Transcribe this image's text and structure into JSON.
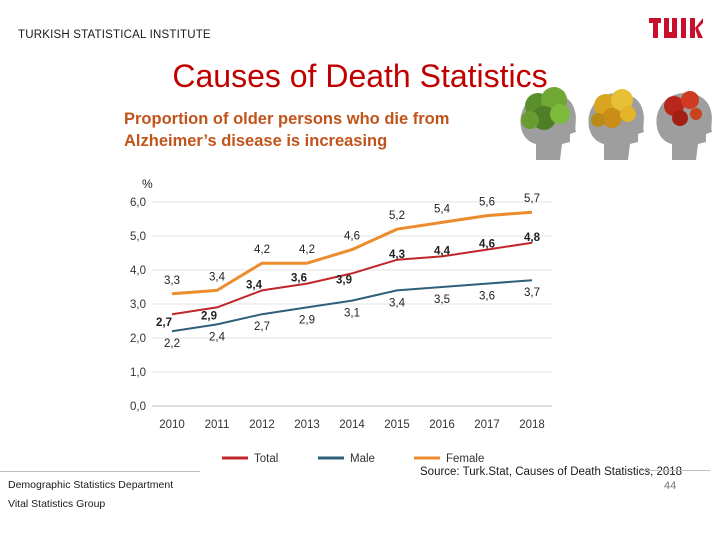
{
  "header": {
    "org": "TURKISH STATISTICAL INSTITUTE",
    "logo_text": "TÜİK",
    "title": "Causes of Death Statistics",
    "subtitle_line1": "Proportion of older persons who die from",
    "subtitle_line2": "Alzheimer’s disease is increasing"
  },
  "chart_data": {
    "type": "line",
    "ylabel": "%",
    "xlabel": "",
    "ylim": [
      0,
      6
    ],
    "yticks": [
      "0,0",
      "1,0",
      "2,0",
      "3,0",
      "4,0",
      "5,0",
      "6,0"
    ],
    "categories": [
      "2010",
      "2011",
      "2012",
      "2013",
      "2014",
      "2015",
      "2016",
      "2017",
      "2018"
    ],
    "legend_position": "bottom",
    "series": [
      {
        "name": "Total",
        "color": "#c0262a",
        "values": [
          2.7,
          2.9,
          3.4,
          3.6,
          3.9,
          4.3,
          4.4,
          4.6,
          4.8
        ],
        "labels": [
          "2,7",
          "2,9",
          "3,4",
          "3,6",
          "3,9",
          "4,3",
          "4,4",
          "4,6",
          "4,8"
        ]
      },
      {
        "name": "Male",
        "color": "#2f5f7a",
        "values": [
          2.2,
          2.4,
          2.7,
          2.9,
          3.1,
          3.4,
          3.5,
          3.6,
          3.7
        ],
        "labels": [
          "2,2",
          "2,4",
          "2,7",
          "2,9",
          "3,1",
          "3,4",
          "3,5",
          "3,6",
          "3,7"
        ]
      },
      {
        "name": "Female",
        "color": "#ec8c2c",
        "values": [
          3.3,
          3.4,
          4.2,
          4.2,
          4.6,
          5.2,
          5.4,
          5.6,
          5.7
        ],
        "labels": [
          "3,3",
          "3,4",
          "4,2",
          "4,2",
          "4,6",
          "5,2",
          "5,4",
          "5,6",
          "5,7"
        ]
      }
    ]
  },
  "footer": {
    "source": "Source: Turk.Stat, Causes of Death Statistics, 2018",
    "dept_line1": "Demographic Statistics Department",
    "dept_line2": "Vital Statistics Group",
    "page": "44"
  }
}
